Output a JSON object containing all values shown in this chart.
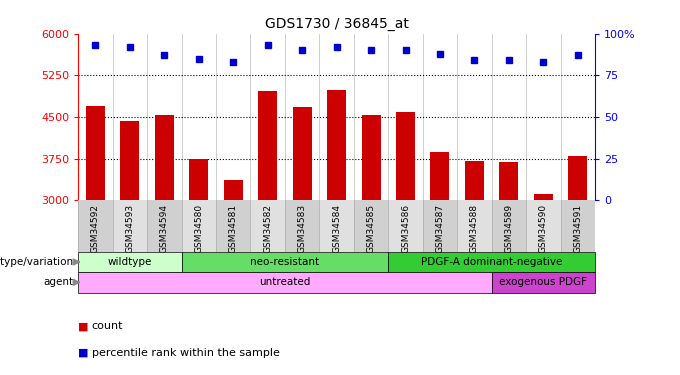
{
  "title": "GDS1730 / 36845_at",
  "samples": [
    "GSM34592",
    "GSM34593",
    "GSM34594",
    "GSM34580",
    "GSM34581",
    "GSM34582",
    "GSM34583",
    "GSM34584",
    "GSM34585",
    "GSM34586",
    "GSM34587",
    "GSM34588",
    "GSM34589",
    "GSM34590",
    "GSM34591"
  ],
  "counts": [
    4700,
    4420,
    4530,
    3740,
    3360,
    4960,
    4680,
    4980,
    4540,
    4580,
    3870,
    3700,
    3690,
    3110,
    3790
  ],
  "percentile_ranks": [
    93,
    92,
    87,
    85,
    83,
    93,
    90,
    92,
    90,
    90,
    88,
    84,
    84,
    83,
    87
  ],
  "ylim_left": [
    3000,
    6000
  ],
  "ylim_right": [
    0,
    100
  ],
  "yticks_left": [
    3000,
    3750,
    4500,
    5250,
    6000
  ],
  "yticks_right": [
    0,
    25,
    50,
    75,
    100
  ],
  "bar_color": "#cc0000",
  "dot_color": "#0000cc",
  "genotype_groups": [
    {
      "label": "wildtype",
      "start": 0,
      "end": 3,
      "color": "#ccffcc"
    },
    {
      "label": "neo-resistant",
      "start": 3,
      "end": 9,
      "color": "#66dd66"
    },
    {
      "label": "PDGF-A dominant-negative",
      "start": 9,
      "end": 15,
      "color": "#33cc33"
    }
  ],
  "agent_groups": [
    {
      "label": "untreated",
      "start": 0,
      "end": 12,
      "color": "#ffaaff"
    },
    {
      "label": "exogenous PDGF",
      "start": 12,
      "end": 15,
      "color": "#cc44cc"
    }
  ],
  "legend_items": [
    {
      "label": "count",
      "color": "#cc0000"
    },
    {
      "label": "percentile rank within the sample",
      "color": "#0000cc"
    }
  ]
}
